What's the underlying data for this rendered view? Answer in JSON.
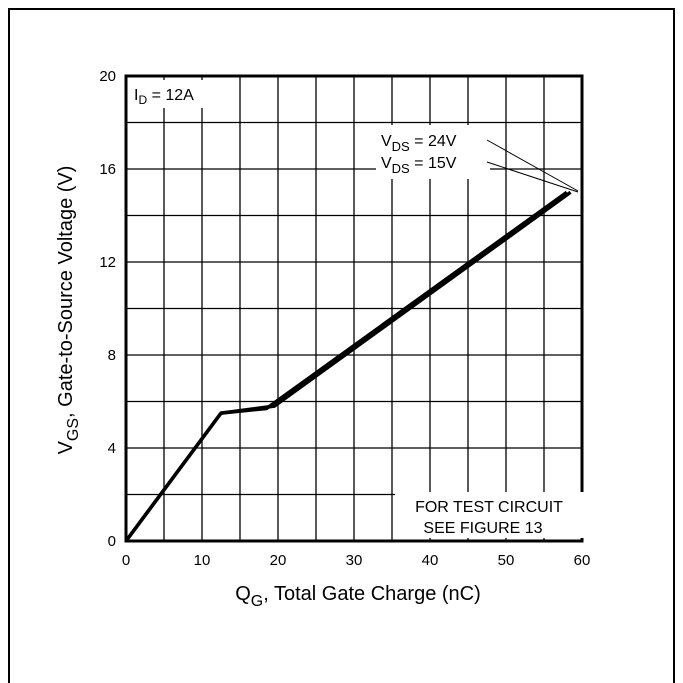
{
  "chart_data": {
    "type": "line",
    "xlabel": {
      "main": "Q",
      "sub": "G",
      "rest": ", Total Gate Charge (nC)"
    },
    "ylabel": {
      "main": "V",
      "sub": "GS",
      "rest": ", Gate-to-Source Voltage (V)"
    },
    "xlim": [
      0,
      60
    ],
    "ylim": [
      0,
      20
    ],
    "xticks": [
      0,
      10,
      20,
      30,
      40,
      50,
      60
    ],
    "yticks": [
      0,
      4,
      8,
      12,
      16,
      20
    ],
    "x_minor_step": 5,
    "y_minor_step": 2,
    "grid": true,
    "series": [
      {
        "name": "VDS = 24V",
        "x": [
          0,
          12.5,
          19.5,
          58.5
        ],
        "y": [
          0,
          5.5,
          5.8,
          15
        ]
      },
      {
        "name": "VDS = 15V",
        "x": [
          0,
          12.5,
          18.5,
          58
        ],
        "y": [
          0,
          5.5,
          5.7,
          15
        ]
      }
    ],
    "annotations": {
      "id_label": {
        "main": "I",
        "sub": "D",
        "rest": " = 12A"
      },
      "vds_24": {
        "main": "V",
        "sub": "DS",
        "rest": " = 24V"
      },
      "vds_15": {
        "main": "V",
        "sub": "DS",
        "rest": " = 15V"
      },
      "test_line1": "FOR TEST CIRCUIT",
      "test_line2": "SEE FIGURE 13"
    }
  }
}
